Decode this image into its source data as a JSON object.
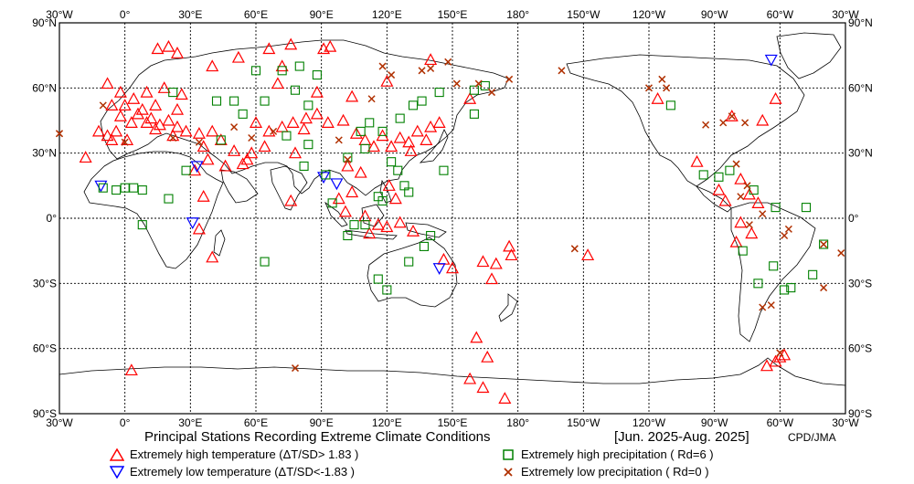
{
  "map": {
    "top_labels": [
      "30°W",
      "0°",
      "30°E",
      "60°E",
      "90°E",
      "120°E",
      "150°E",
      "180°",
      "150°W",
      "120°W",
      "90°W",
      "60°W",
      "30°W"
    ],
    "bottom_labels": [
      "30°W",
      "0°",
      "30°E",
      "60°E",
      "90°E",
      "120°E",
      "150°E",
      "180°",
      "150°W",
      "120°W",
      "90°W",
      "60°W",
      "30°W"
    ],
    "lat_labels": [
      "90°N",
      "60°N",
      "30°N",
      "0°",
      "30°S",
      "60°S",
      "90°S"
    ],
    "colors": {
      "high_temp": "#ff0000",
      "low_temp": "#0000ff",
      "high_precip": "#008000",
      "low_precip": "#b03000",
      "coast": "#000000",
      "grid": "#000000"
    },
    "markers": {
      "high_temp": [
        [
          -2,
          47
        ],
        [
          3,
          44
        ],
        [
          8,
          50
        ],
        [
          12,
          46
        ],
        [
          16,
          43
        ],
        [
          20,
          45
        ],
        [
          24,
          42
        ],
        [
          28,
          40
        ],
        [
          22,
          38
        ],
        [
          14,
          41
        ],
        [
          10,
          44
        ],
        [
          6,
          48
        ],
        [
          0,
          52
        ],
        [
          -4,
          40
        ],
        [
          -8,
          38
        ],
        [
          -6,
          52
        ],
        [
          4,
          55
        ],
        [
          10,
          58
        ],
        [
          18,
          60
        ],
        [
          26,
          57
        ],
        [
          -2,
          58
        ],
        [
          -8,
          62
        ],
        [
          14,
          52
        ],
        [
          24,
          50
        ],
        [
          -18,
          28
        ],
        [
          -12,
          40
        ],
        [
          -6,
          36
        ],
        [
          1,
          36
        ],
        [
          34,
          39
        ],
        [
          40,
          40
        ],
        [
          36,
          33
        ],
        [
          44,
          36
        ],
        [
          50,
          31
        ],
        [
          56,
          27
        ],
        [
          46,
          24
        ],
        [
          38,
          27
        ],
        [
          60,
          44
        ],
        [
          66,
          40
        ],
        [
          72,
          42
        ],
        [
          77,
          44
        ],
        [
          83,
          46
        ],
        [
          88,
          48
        ],
        [
          93,
          44
        ],
        [
          100,
          45
        ],
        [
          106,
          39
        ],
        [
          110,
          36
        ],
        [
          114,
          33
        ],
        [
          118,
          38
        ],
        [
          122,
          33
        ],
        [
          126,
          37
        ],
        [
          130,
          35
        ],
        [
          134,
          40
        ],
        [
          140,
          42
        ],
        [
          144,
          44
        ],
        [
          138,
          36
        ],
        [
          131,
          31
        ],
        [
          102,
          24
        ],
        [
          108,
          21
        ],
        [
          104,
          12
        ],
        [
          98,
          9
        ],
        [
          101,
          3
        ],
        [
          110,
          1
        ],
        [
          116,
          -3
        ],
        [
          120,
          -4
        ],
        [
          126,
          -2
        ],
        [
          132,
          -6
        ],
        [
          112,
          -7
        ],
        [
          124,
          9
        ],
        [
          121,
          15
        ],
        [
          82,
          41
        ],
        [
          78,
          30
        ],
        [
          76,
          8
        ],
        [
          64,
          33
        ],
        [
          58,
          30
        ],
        [
          54,
          25
        ],
        [
          32,
          22
        ],
        [
          36,
          10
        ],
        [
          34,
          -5
        ],
        [
          40,
          -18
        ],
        [
          3,
          -70
        ],
        [
          15,
          78
        ],
        [
          20,
          79
        ],
        [
          24,
          76
        ],
        [
          40,
          70
        ],
        [
          52,
          74
        ],
        [
          66,
          78
        ],
        [
          72,
          70
        ],
        [
          76,
          80
        ],
        [
          91,
          78
        ],
        [
          94,
          79
        ],
        [
          70,
          62
        ],
        [
          88,
          58
        ],
        [
          104,
          56
        ],
        [
          120,
          63
        ],
        [
          140,
          73
        ],
        [
          158,
          55
        ],
        [
          146,
          -19
        ],
        [
          150,
          -23
        ],
        [
          164,
          -20
        ],
        [
          170,
          -21
        ],
        [
          168,
          -28
        ],
        [
          176,
          -13
        ],
        [
          177,
          -17
        ],
        [
          166,
          -64
        ],
        [
          161,
          -55
        ],
        [
          158,
          -74
        ],
        [
          164,
          -78
        ],
        [
          174,
          -83
        ],
        [
          -148,
          -17
        ],
        [
          -116,
          55
        ],
        [
          -98,
          26
        ],
        [
          -88,
          13
        ],
        [
          -85,
          8
        ],
        [
          -78,
          -2
        ],
        [
          -80,
          -11
        ],
        [
          -73,
          -7
        ],
        [
          -70,
          7
        ],
        [
          -74,
          11
        ],
        [
          -78,
          18
        ],
        [
          -60,
          -64
        ],
        [
          -62,
          -66
        ],
        [
          -66,
          -68
        ],
        [
          -58,
          -63
        ],
        [
          -62,
          55
        ],
        [
          -68,
          45
        ],
        [
          -82,
          47
        ]
      ],
      "low_temp": [
        [
          -11,
          15
        ],
        [
          33,
          24
        ],
        [
          31,
          -2
        ],
        [
          91,
          19
        ],
        [
          97,
          16
        ],
        [
          144,
          -23
        ],
        [
          -64,
          73
        ]
      ],
      "high_precip": [
        [
          -10,
          14
        ],
        [
          -4,
          13
        ],
        [
          0,
          14
        ],
        [
          4,
          14
        ],
        [
          8,
          13
        ],
        [
          28,
          22
        ],
        [
          22,
          58
        ],
        [
          42,
          54
        ],
        [
          50,
          54
        ],
        [
          54,
          48
        ],
        [
          44,
          36
        ],
        [
          60,
          68
        ],
        [
          72,
          68
        ],
        [
          80,
          70
        ],
        [
          88,
          66
        ],
        [
          78,
          59
        ],
        [
          84,
          52
        ],
        [
          64,
          54
        ],
        [
          74,
          38
        ],
        [
          84,
          34
        ],
        [
          82,
          24
        ],
        [
          92,
          20
        ],
        [
          95,
          7
        ],
        [
          102,
          28
        ],
        [
          110,
          32
        ],
        [
          122,
          26
        ],
        [
          128,
          15
        ],
        [
          125,
          22
        ],
        [
          130,
          12
        ],
        [
          112,
          44
        ],
        [
          118,
          40
        ],
        [
          126,
          46
        ],
        [
          132,
          52
        ],
        [
          136,
          54
        ],
        [
          144,
          58
        ],
        [
          160,
          59
        ],
        [
          165,
          61
        ],
        [
          160,
          48
        ],
        [
          146,
          22
        ],
        [
          108,
          40
        ],
        [
          116,
          10
        ],
        [
          118,
          8
        ],
        [
          105,
          -3
        ],
        [
          102,
          -8
        ],
        [
          110,
          -3
        ],
        [
          140,
          -8
        ],
        [
          137,
          -13
        ],
        [
          130,
          -20
        ],
        [
          116,
          -28
        ],
        [
          120,
          -33
        ],
        [
          20,
          9
        ],
        [
          8,
          -3
        ],
        [
          64,
          -20
        ],
        [
          -110,
          52
        ],
        [
          -95,
          20
        ],
        [
          -88,
          19
        ],
        [
          -83,
          22
        ],
        [
          -72,
          13
        ],
        [
          -62,
          5
        ],
        [
          -63,
          -22
        ],
        [
          -70,
          -30
        ],
        [
          -77,
          -15
        ],
        [
          -48,
          5
        ],
        [
          -45,
          -26
        ],
        [
          -55,
          -32
        ],
        [
          -58,
          -33
        ],
        [
          -40,
          -12
        ]
      ],
      "low_precip": [
        [
          -30,
          39
        ],
        [
          -10,
          52
        ],
        [
          0,
          35
        ],
        [
          22,
          37
        ],
        [
          34,
          35
        ],
        [
          50,
          42
        ],
        [
          58,
          37
        ],
        [
          68,
          40
        ],
        [
          98,
          36
        ],
        [
          102,
          27
        ],
        [
          113,
          55
        ],
        [
          118,
          70
        ],
        [
          122,
          66
        ],
        [
          136,
          68
        ],
        [
          140,
          69
        ],
        [
          148,
          72
        ],
        [
          152,
          62
        ],
        [
          162,
          62
        ],
        [
          168,
          58
        ],
        [
          176,
          64
        ],
        [
          -160,
          68
        ],
        [
          -154,
          -14
        ],
        [
          -120,
          60
        ],
        [
          -112,
          60
        ],
        [
          -114,
          64
        ],
        [
          -94,
          43
        ],
        [
          -86,
          44
        ],
        [
          -82,
          47
        ],
        [
          -76,
          44
        ],
        [
          -80,
          25
        ],
        [
          -78,
          10
        ],
        [
          -74,
          -3
        ],
        [
          -68,
          2
        ],
        [
          -58,
          -8
        ],
        [
          -64,
          -40
        ],
        [
          -68,
          -41
        ],
        [
          -60,
          -62
        ],
        [
          -40,
          -12
        ],
        [
          -40,
          -32
        ],
        [
          -56,
          -5
        ],
        [
          -32,
          -16
        ],
        [
          -30,
          39
        ],
        [
          78,
          -69
        ],
        [
          -75,
          15
        ]
      ]
    }
  },
  "titles": {
    "main": "Principal Stations Recording Extreme Climate Conditions",
    "period": "[Jun. 2025-Aug. 2025]",
    "credit": "CPD/JMA"
  },
  "legend": {
    "high_temp": "Extremely high temperature (ΔT/SD> 1.83 )",
    "low_temp": "Extremely low temperature  (ΔT/SD<-1.83 )",
    "high_precip": "Extremely high precipitation ( Rd=6 )",
    "low_precip": "Extremely low precipitation ( Rd=0 )"
  }
}
